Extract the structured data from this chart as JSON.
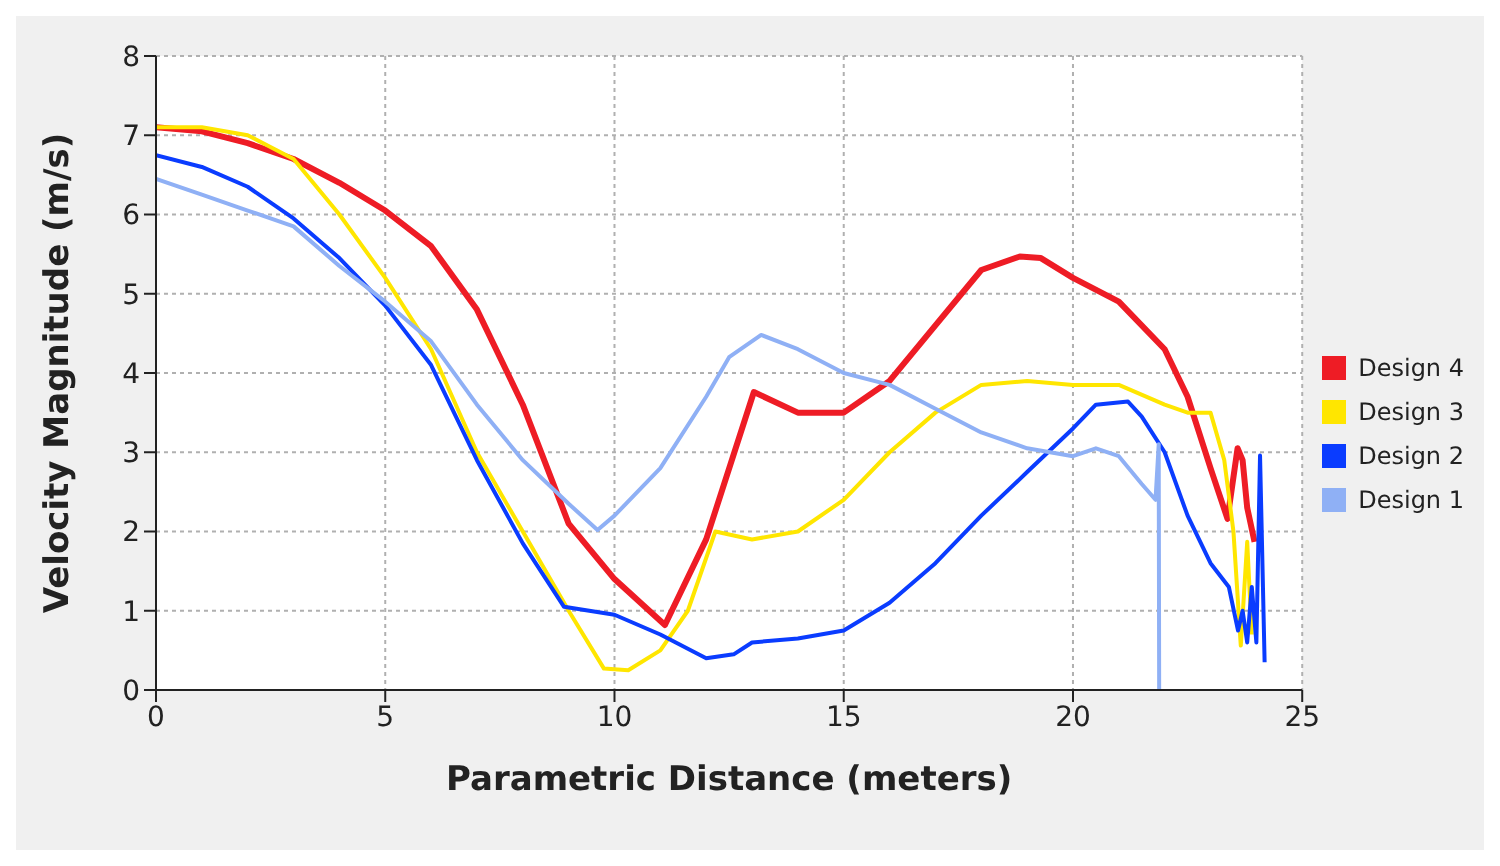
{
  "chart_data": {
    "type": "line",
    "xlabel": "Parametric Distance (meters)",
    "ylabel": "Velocity Magnitude (m/s)",
    "xlim": [
      0,
      25
    ],
    "xticks": [
      0,
      5,
      10,
      15,
      20,
      25
    ],
    "ylim": [
      0,
      8
    ],
    "yticks": [
      0,
      1,
      2,
      3,
      4,
      5,
      6,
      7,
      8
    ],
    "grid": true,
    "legend": "right",
    "marker": "none",
    "line_style": "solid",
    "series": [
      {
        "name": "Design 4",
        "color": "#ee1c25",
        "x": [
          0,
          1,
          2,
          3,
          4,
          5,
          6,
          7,
          8,
          9,
          10,
          11.1,
          12,
          13.04,
          14,
          15,
          16,
          17,
          18,
          18.84,
          19.3,
          20,
          21,
          22,
          22.5,
          23,
          23.37,
          23.59,
          23.7,
          23.8,
          23.96
        ],
        "values": [
          7.1,
          7.05,
          6.9,
          6.7,
          6.4,
          6.05,
          5.6,
          4.8,
          3.6,
          2.1,
          1.4,
          0.82,
          1.9,
          3.76,
          3.5,
          3.5,
          3.9,
          4.6,
          5.3,
          5.47,
          5.45,
          5.2,
          4.9,
          4.3,
          3.7,
          2.8,
          2.16,
          3.05,
          2.9,
          2.3,
          1.87
        ]
      },
      {
        "name": "Design 3",
        "color": "#ffe600",
        "x": [
          0,
          1,
          2,
          3,
          4,
          5,
          6,
          7,
          8,
          9,
          9.77,
          10.3,
          11,
          11.6,
          12.2,
          13,
          14,
          15,
          16,
          17,
          18,
          19,
          20,
          21,
          22,
          22.5,
          23,
          23.3,
          23.5,
          23.66,
          23.8,
          23.9
        ],
        "values": [
          7.1,
          7.1,
          7.0,
          6.7,
          6.0,
          5.2,
          4.3,
          3.0,
          2.0,
          1.0,
          0.27,
          0.25,
          0.5,
          1.0,
          2.0,
          1.9,
          2.0,
          2.4,
          3.0,
          3.5,
          3.85,
          3.9,
          3.85,
          3.85,
          3.6,
          3.5,
          3.5,
          2.9,
          2.0,
          0.56,
          1.87,
          0.7
        ]
      },
      {
        "name": "Design 2",
        "color": "#0a3cff",
        "x": [
          0,
          1,
          2,
          3,
          4,
          5,
          6,
          7,
          8,
          8.9,
          10,
          11,
          12,
          12.6,
          13,
          14,
          15,
          16,
          17,
          18,
          19,
          20,
          20.5,
          21.2,
          21.5,
          22,
          22.5,
          23,
          23.4,
          23.6,
          23.7,
          23.8,
          23.9,
          24,
          24.08,
          24.18
        ],
        "values": [
          6.75,
          6.6,
          6.35,
          5.95,
          5.45,
          4.85,
          4.1,
          2.9,
          1.85,
          1.05,
          0.95,
          0.7,
          0.4,
          0.45,
          0.6,
          0.65,
          0.75,
          1.1,
          1.6,
          2.2,
          2.75,
          3.3,
          3.6,
          3.64,
          3.45,
          3.0,
          2.2,
          1.6,
          1.3,
          0.75,
          1.0,
          0.6,
          1.3,
          0.6,
          2.96,
          0.35
        ]
      },
      {
        "name": "Design 1",
        "color": "#8fb0f5",
        "x": [
          0,
          1,
          2,
          3,
          4,
          5,
          6,
          7,
          8,
          9,
          9.63,
          10,
          11,
          12,
          12.5,
          13.2,
          14,
          15,
          16,
          17,
          18,
          19,
          20,
          20.5,
          21,
          21.5,
          21.8,
          21.87,
          21.88
        ],
        "values": [
          6.45,
          6.25,
          6.05,
          5.85,
          5.35,
          4.9,
          4.4,
          3.6,
          2.9,
          2.35,
          2.02,
          2.2,
          2.8,
          3.7,
          4.2,
          4.48,
          4.3,
          4.0,
          3.85,
          3.55,
          3.25,
          3.05,
          2.95,
          3.05,
          2.95,
          2.6,
          2.4,
          3.1,
          0
        ]
      }
    ]
  }
}
